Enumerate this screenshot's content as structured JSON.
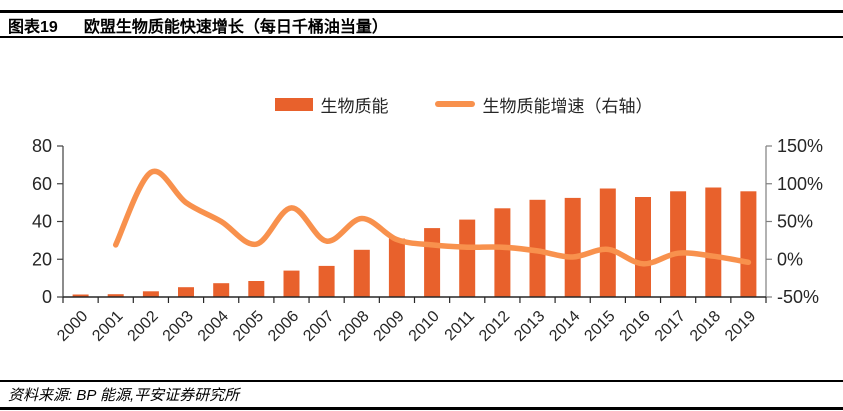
{
  "header": {
    "fig_label": "图表19",
    "title": "欧盟生物质能快速增长（每日千桶油当量）"
  },
  "legend": {
    "bar_label": "生物质能",
    "line_label": "生物质能增速（右轴）"
  },
  "footer": {
    "source": "资料来源: BP 能源,平安证券研究所"
  },
  "colors": {
    "bar": "#E8612C",
    "line": "#F8914D",
    "axis": "#404040",
    "tick_text": "#262626"
  },
  "chart_data": {
    "type": "bar",
    "title": "欧盟生物质能快速增长（每日千桶油当量）",
    "categories": [
      "2000",
      "2001",
      "2002",
      "2003",
      "2004",
      "2005",
      "2006",
      "2007",
      "2008",
      "2009",
      "2010",
      "2011",
      "2012",
      "2013",
      "2014",
      "2015",
      "2016",
      "2017",
      "2018",
      "2019"
    ],
    "series": [
      {
        "name": "生物质能",
        "type": "bar",
        "axis": "left",
        "values": [
          1.3,
          1.5,
          3.0,
          5.2,
          7.3,
          8.5,
          14,
          16.5,
          25,
          31,
          36.5,
          41,
          47,
          51.5,
          52.5,
          57.5,
          53,
          56,
          58,
          56
        ]
      },
      {
        "name": "生物质能增速（右轴）",
        "type": "line",
        "axis": "right",
        "values": [
          null,
          19,
          115,
          75,
          50,
          20,
          68,
          24,
          54,
          26,
          19,
          16,
          16,
          11,
          3,
          13,
          -6,
          8,
          4,
          -4
        ]
      }
    ],
    "left_axis": {
      "range": [
        0,
        80
      ],
      "tick_values": [
        0,
        20,
        40,
        60,
        80
      ],
      "tick_labels": [
        "0",
        "20",
        "40",
        "60",
        "80"
      ]
    },
    "right_axis": {
      "range": [
        -50,
        150
      ],
      "tick_values": [
        -50,
        0,
        50,
        100,
        150
      ],
      "tick_labels": [
        "-50%",
        "0%",
        "50%",
        "100%",
        "150%"
      ]
    },
    "grid": "off",
    "legend_position": "top"
  }
}
